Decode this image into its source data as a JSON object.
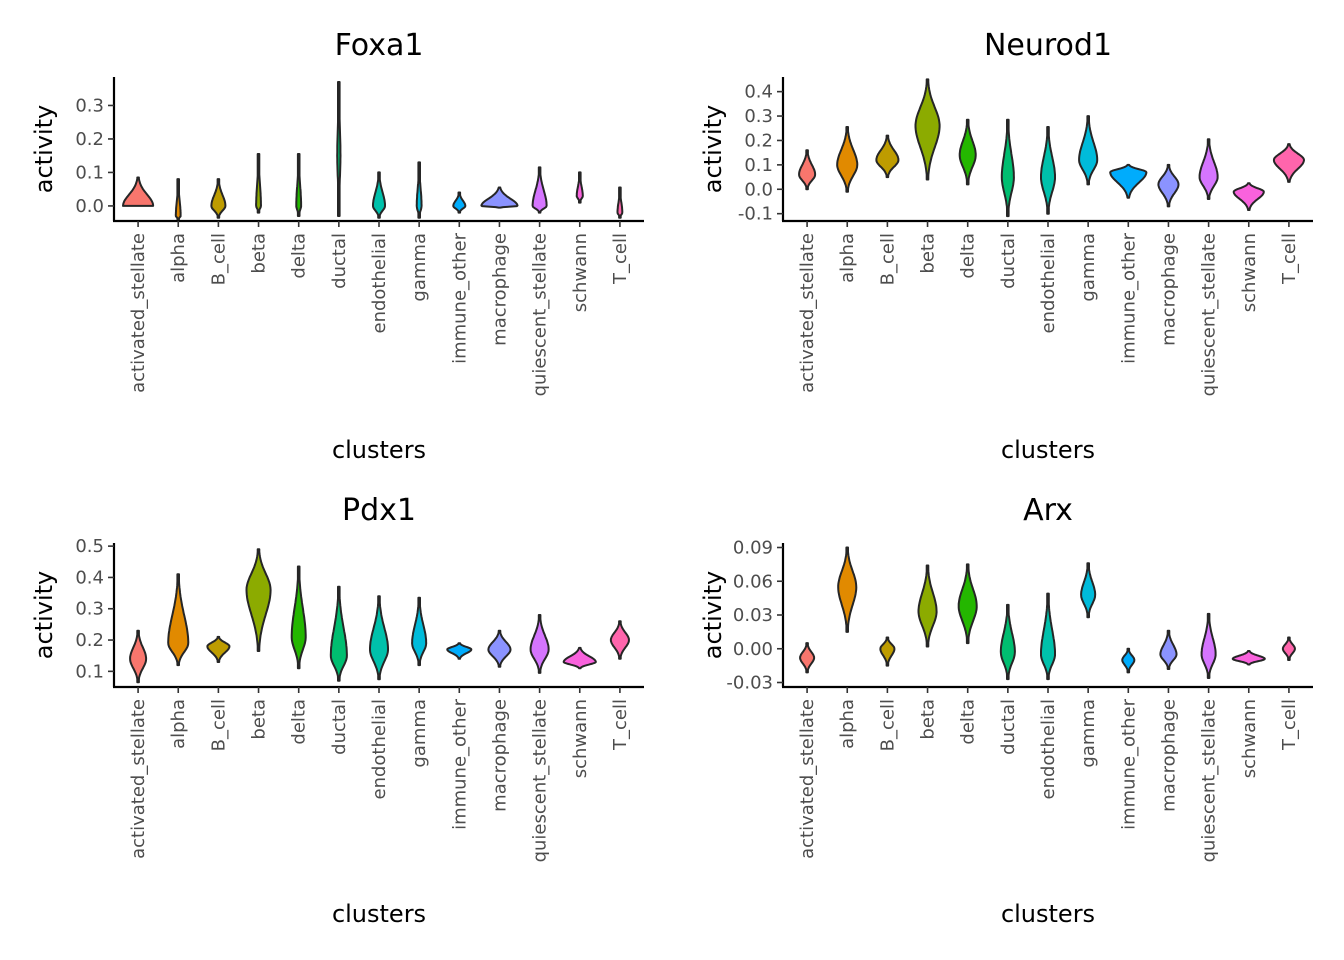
{
  "chart_data": [
    {
      "type": "violin",
      "title": "Foxa1",
      "xlabel": "clusters",
      "ylabel": "activity",
      "ylim": [
        -0.045,
        0.385
      ],
      "yticks": [
        0.0,
        0.1,
        0.2,
        0.3
      ],
      "ytick_labels": [
        "0.0",
        "0.1",
        "0.2",
        "0.3"
      ],
      "categories": [
        "activated_stellate",
        "alpha",
        "B_cell",
        "beta",
        "delta",
        "ductal",
        "endothelial",
        "gamma",
        "immune_other",
        "macrophage",
        "quiescent_stellate",
        "schwann",
        "T_cell"
      ],
      "series": [
        {
          "min": 0.0,
          "max": 0.085,
          "mode": 0.0,
          "width": 0.75
        },
        {
          "min": -0.04,
          "max": 0.08,
          "mode": -0.03,
          "width": 0.12
        },
        {
          "min": -0.035,
          "max": 0.08,
          "mode": 0.0,
          "width": 0.35
        },
        {
          "min": -0.02,
          "max": 0.155,
          "mode": 0.0,
          "width": 0.12
        },
        {
          "min": -0.03,
          "max": 0.155,
          "mode": 0.0,
          "width": 0.12
        },
        {
          "min": -0.03,
          "max": 0.37,
          "mode": 0.15,
          "width": 0.08
        },
        {
          "min": -0.035,
          "max": 0.1,
          "mode": 0.0,
          "width": 0.3
        },
        {
          "min": -0.035,
          "max": 0.13,
          "mode": 0.0,
          "width": 0.12
        },
        {
          "min": -0.02,
          "max": 0.04,
          "mode": 0.0,
          "width": 0.3
        },
        {
          "min": -0.005,
          "max": 0.055,
          "mode": 0.0,
          "width": 0.9
        },
        {
          "min": -0.02,
          "max": 0.115,
          "mode": 0.0,
          "width": 0.35
        },
        {
          "min": 0.01,
          "max": 0.1,
          "mode": 0.03,
          "width": 0.15
        },
        {
          "min": -0.035,
          "max": 0.055,
          "mode": -0.02,
          "width": 0.12
        }
      ]
    },
    {
      "type": "violin",
      "title": "Neurod1",
      "xlabel": "clusters",
      "ylabel": "activity",
      "ylim": [
        -0.13,
        0.46
      ],
      "yticks": [
        -0.1,
        0.0,
        0.1,
        0.2,
        0.3,
        0.4
      ],
      "ytick_labels": [
        "-0.1",
        "0.0",
        "0.1",
        "0.2",
        "0.3",
        "0.4"
      ],
      "categories": [
        "activated_stellate",
        "alpha",
        "B_cell",
        "beta",
        "delta",
        "ductal",
        "endothelial",
        "gamma",
        "immune_other",
        "macrophage",
        "quiescent_stellate",
        "schwann",
        "T_cell"
      ],
      "series": [
        {
          "min": 0.0,
          "max": 0.16,
          "mode": 0.06,
          "width": 0.4
        },
        {
          "min": -0.01,
          "max": 0.255,
          "mode": 0.1,
          "width": 0.5
        },
        {
          "min": 0.05,
          "max": 0.22,
          "mode": 0.12,
          "width": 0.55
        },
        {
          "min": 0.04,
          "max": 0.45,
          "mode": 0.26,
          "width": 0.6
        },
        {
          "min": 0.02,
          "max": 0.285,
          "mode": 0.14,
          "width": 0.4
        },
        {
          "min": -0.11,
          "max": 0.285,
          "mode": 0.05,
          "width": 0.3
        },
        {
          "min": -0.1,
          "max": 0.255,
          "mode": 0.05,
          "width": 0.35
        },
        {
          "min": 0.02,
          "max": 0.3,
          "mode": 0.12,
          "width": 0.45
        },
        {
          "min": -0.035,
          "max": 0.1,
          "mode": 0.07,
          "width": 0.9
        },
        {
          "min": -0.07,
          "max": 0.1,
          "mode": 0.02,
          "width": 0.5
        },
        {
          "min": -0.04,
          "max": 0.205,
          "mode": 0.05,
          "width": 0.45
        },
        {
          "min": -0.085,
          "max": 0.025,
          "mode": -0.01,
          "width": 0.75
        },
        {
          "min": 0.03,
          "max": 0.185,
          "mode": 0.12,
          "width": 0.75
        }
      ]
    },
    {
      "type": "violin",
      "title": "Pdx1",
      "xlabel": "clusters",
      "ylabel": "activity",
      "ylim": [
        0.05,
        0.51
      ],
      "yticks": [
        0.1,
        0.2,
        0.3,
        0.4,
        0.5
      ],
      "ytick_labels": [
        "0.1",
        "0.2",
        "0.3",
        "0.4",
        "0.5"
      ],
      "categories": [
        "activated_stellate",
        "alpha",
        "B_cell",
        "beta",
        "delta",
        "ductal",
        "endothelial",
        "gamma",
        "immune_other",
        "macrophage",
        "quiescent_stellate",
        "schwann",
        "T_cell"
      ],
      "series": [
        {
          "min": 0.065,
          "max": 0.23,
          "mode": 0.14,
          "width": 0.4
        },
        {
          "min": 0.12,
          "max": 0.41,
          "mode": 0.19,
          "width": 0.5
        },
        {
          "min": 0.13,
          "max": 0.21,
          "mode": 0.18,
          "width": 0.55
        },
        {
          "min": 0.165,
          "max": 0.49,
          "mode": 0.36,
          "width": 0.6
        },
        {
          "min": 0.11,
          "max": 0.435,
          "mode": 0.21,
          "width": 0.35
        },
        {
          "min": 0.07,
          "max": 0.37,
          "mode": 0.15,
          "width": 0.4
        },
        {
          "min": 0.075,
          "max": 0.34,
          "mode": 0.17,
          "width": 0.45
        },
        {
          "min": 0.12,
          "max": 0.335,
          "mode": 0.19,
          "width": 0.35
        },
        {
          "min": 0.14,
          "max": 0.19,
          "mode": 0.17,
          "width": 0.6
        },
        {
          "min": 0.115,
          "max": 0.23,
          "mode": 0.17,
          "width": 0.55
        },
        {
          "min": 0.095,
          "max": 0.28,
          "mode": 0.17,
          "width": 0.45
        },
        {
          "min": 0.11,
          "max": 0.175,
          "mode": 0.13,
          "width": 0.8
        },
        {
          "min": 0.14,
          "max": 0.26,
          "mode": 0.2,
          "width": 0.45
        }
      ]
    },
    {
      "type": "violin",
      "title": "Arx",
      "xlabel": "clusters",
      "ylabel": "activity",
      "ylim": [
        -0.034,
        0.094
      ],
      "yticks": [
        -0.03,
        0.0,
        0.03,
        0.06,
        0.09
      ],
      "ytick_labels": [
        "-0.03",
        "0.00",
        "0.03",
        "0.06",
        "0.09"
      ],
      "categories": [
        "activated_stellate",
        "alpha",
        "B_cell",
        "beta",
        "delta",
        "ductal",
        "endothelial",
        "gamma",
        "immune_other",
        "macrophage",
        "quiescent_stellate",
        "schwann",
        "T_cell"
      ],
      "series": [
        {
          "min": -0.021,
          "max": 0.005,
          "mode": -0.008,
          "width": 0.35
        },
        {
          "min": 0.015,
          "max": 0.09,
          "mode": 0.055,
          "width": 0.45
        },
        {
          "min": -0.015,
          "max": 0.01,
          "mode": 0.0,
          "width": 0.35
        },
        {
          "min": 0.002,
          "max": 0.074,
          "mode": 0.033,
          "width": 0.45
        },
        {
          "min": 0.005,
          "max": 0.075,
          "mode": 0.038,
          "width": 0.45
        },
        {
          "min": -0.027,
          "max": 0.039,
          "mode": -0.003,
          "width": 0.35
        },
        {
          "min": -0.027,
          "max": 0.049,
          "mode": -0.005,
          "width": 0.35
        },
        {
          "min": 0.028,
          "max": 0.076,
          "mode": 0.048,
          "width": 0.35
        },
        {
          "min": -0.021,
          "max": 0.0,
          "mode": -0.01,
          "width": 0.3
        },
        {
          "min": -0.018,
          "max": 0.016,
          "mode": -0.005,
          "width": 0.4
        },
        {
          "min": -0.026,
          "max": 0.031,
          "mode": -0.005,
          "width": 0.35
        },
        {
          "min": -0.014,
          "max": -0.002,
          "mode": -0.009,
          "width": 0.8
        },
        {
          "min": -0.01,
          "max": 0.01,
          "mode": 0.0,
          "width": 0.3
        }
      ]
    }
  ],
  "colors": [
    "#F8766D",
    "#E18A00",
    "#BE9C00",
    "#8CAB00",
    "#24B700",
    "#00BE70",
    "#00C1AB",
    "#00BBDA",
    "#00ACFC",
    "#8B93FF",
    "#D575FE",
    "#F962DD",
    "#FF65AC"
  ]
}
